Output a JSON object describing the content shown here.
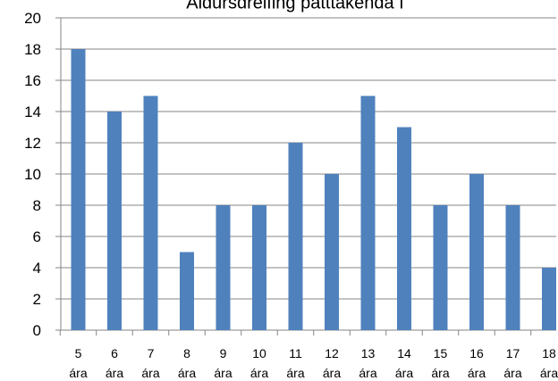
{
  "chart_data": {
    "type": "bar",
    "title": "Aldursdreifing þátttakenda í",
    "categories": [
      [
        "5",
        "ára"
      ],
      [
        "6",
        "ára"
      ],
      [
        "7",
        "ára"
      ],
      [
        "8",
        "ára"
      ],
      [
        "9",
        "ára"
      ],
      [
        "10",
        "ára"
      ],
      [
        "11",
        "ára"
      ],
      [
        "12",
        "ára"
      ],
      [
        "13",
        "ára"
      ],
      [
        "14",
        "ára"
      ],
      [
        "15",
        "ára"
      ],
      [
        "16",
        "ára"
      ],
      [
        "17",
        "ára"
      ],
      [
        "18",
        "ára"
      ]
    ],
    "values": [
      18,
      14,
      15,
      5,
      8,
      8,
      12,
      10,
      15,
      13,
      8,
      10,
      8,
      4
    ],
    "ylim": [
      0,
      20
    ],
    "yticks": [
      0,
      2,
      4,
      6,
      8,
      10,
      12,
      14,
      16,
      18,
      20
    ],
    "grid": true,
    "legend": "none",
    "bar_color": "#4F81BD",
    "grid_color": "#868686"
  }
}
